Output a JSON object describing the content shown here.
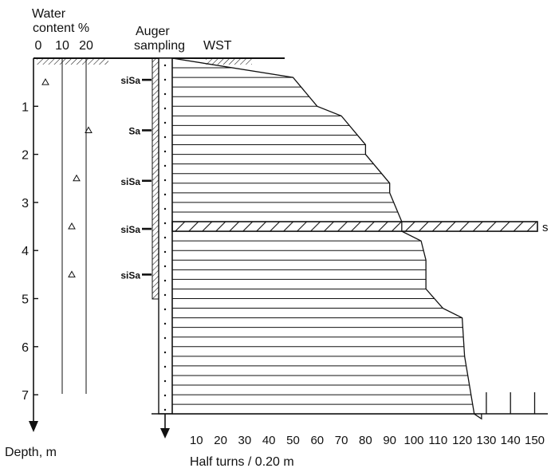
{
  "labels": {
    "water_content_line1": "Water",
    "water_content_line2": "content %",
    "auger_line1": "Auger",
    "auger_line2": "sampling",
    "wst": "WST",
    "depth_axis": "Depth, m",
    "half_turns_axis": "Half turns / 0.20 m",
    "stiff_layer_mark": "s"
  },
  "chart_data": {
    "type": "diagram",
    "water_content": {
      "ticks": [
        0,
        10,
        20
      ],
      "points": [
        {
          "depth": 0.5,
          "value": 3
        },
        {
          "depth": 1.5,
          "value": 21
        },
        {
          "depth": 2.5,
          "value": 16
        },
        {
          "depth": 3.5,
          "value": 14
        },
        {
          "depth": 4.5,
          "value": 14
        }
      ]
    },
    "depth_ticks": [
      1,
      2,
      3,
      4,
      5,
      6,
      7
    ],
    "soil_samples": [
      {
        "depth": 0.45,
        "label": "siSa"
      },
      {
        "depth": 1.5,
        "label": "Sa"
      },
      {
        "depth": 2.55,
        "label": "siSa"
      },
      {
        "depth": 3.55,
        "label": "siSa"
      },
      {
        "depth": 4.5,
        "label": "siSa"
      }
    ],
    "half_turn_ticks": [
      10,
      20,
      30,
      40,
      50,
      60,
      70,
      80,
      90,
      100,
      110,
      120,
      130,
      140,
      150
    ],
    "wst_profile": [
      {
        "depth": 0.0,
        "half_turns": 0
      },
      {
        "depth": 0.4,
        "half_turns": 50
      },
      {
        "depth": 1.0,
        "half_turns": 60
      },
      {
        "depth": 1.2,
        "half_turns": 70
      },
      {
        "depth": 1.8,
        "half_turns": 80
      },
      {
        "depth": 2.0,
        "half_turns": 80
      },
      {
        "depth": 2.6,
        "half_turns": 90
      },
      {
        "depth": 2.8,
        "half_turns": 90
      },
      {
        "depth": 3.4,
        "half_turns": 95
      },
      {
        "depth": 3.6,
        "half_turns": 95
      },
      {
        "depth": 3.8,
        "half_turns": 103
      },
      {
        "depth": 4.2,
        "half_turns": 105
      },
      {
        "depth": 4.8,
        "half_turns": 105
      },
      {
        "depth": 5.2,
        "half_turns": 112
      },
      {
        "depth": 5.4,
        "half_turns": 120
      },
      {
        "depth": 6.2,
        "half_turns": 121
      },
      {
        "depth": 6.8,
        "half_turns": 123
      },
      {
        "depth": 7.4,
        "half_turns": 125
      },
      {
        "depth": 7.5,
        "half_turns": 128
      }
    ],
    "stiff_layer": {
      "top_depth": 3.4,
      "bottom_depth": 3.6
    }
  }
}
